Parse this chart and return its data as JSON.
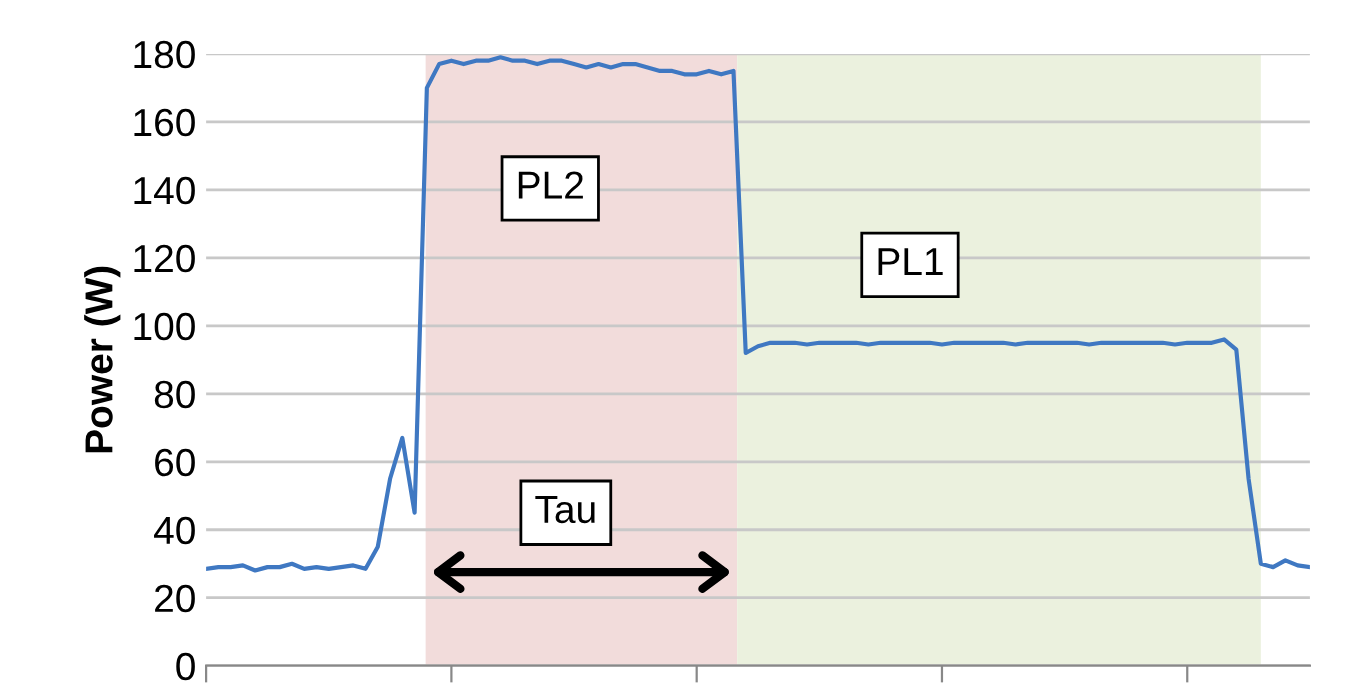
{
  "chart_data": {
    "type": "line",
    "ylabel": "Power (W)",
    "categories": [
      null,
      null,
      null,
      null,
      null,
      null,
      null,
      null,
      null,
      null,
      null,
      null,
      null,
      null,
      null,
      null,
      null,
      null,
      null,
      null,
      null,
      null,
      null,
      null,
      null,
      null,
      null,
      null,
      null,
      null,
      null,
      null,
      null,
      null,
      null,
      null,
      null,
      null,
      null,
      null,
      null,
      null,
      null,
      null,
      null,
      null,
      null,
      null,
      null,
      null,
      null,
      null,
      null,
      null,
      null,
      null,
      null,
      null,
      null,
      null,
      null,
      null,
      null,
      null,
      null,
      null,
      null,
      null,
      null,
      null,
      null,
      null,
      null,
      null,
      null,
      null,
      null,
      null,
      null,
      null,
      null,
      null,
      null,
      null,
      null,
      null,
      null,
      null,
      null,
      null,
      null
    ],
    "series": [
      {
        "color": "#3f78c2",
        "values": [
          28.5,
          29,
          29,
          29.5,
          28,
          29,
          29,
          30,
          28.5,
          29,
          28.5,
          29,
          29.5,
          28.5,
          35,
          55,
          67,
          45,
          170,
          177,
          178,
          177,
          178,
          178,
          179,
          178,
          178,
          177,
          178,
          178,
          177,
          176,
          177,
          176,
          177,
          177,
          176,
          175,
          175,
          174,
          174,
          175,
          174,
          175,
          92,
          94,
          95,
          95,
          95,
          94.5,
          95,
          95,
          95,
          95,
          94.5,
          95,
          95,
          95,
          95,
          95,
          94.5,
          95,
          95,
          95,
          95,
          95,
          94.5,
          95,
          95,
          95,
          95,
          95,
          94.5,
          95,
          95,
          95,
          95,
          95,
          95,
          94.5,
          95,
          95,
          95,
          96,
          93,
          55,
          30,
          29,
          31,
          29.5,
          29
        ]
      }
    ],
    "ylim": [
      0,
      180
    ],
    "yticks": [
      0,
      20,
      40,
      60,
      80,
      100,
      120,
      140,
      160,
      180
    ],
    "tick_labels": "y",
    "grid": "y",
    "legend": false,
    "marker": "none",
    "line_style": "solid",
    "annotations": [
      "PL2",
      "PL1",
      "Tau"
    ]
  }
}
